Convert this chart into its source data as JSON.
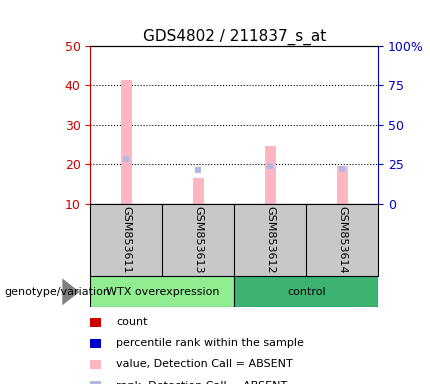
{
  "title": "GDS4802 / 211837_s_at",
  "samples": [
    "GSM853611",
    "GSM853613",
    "GSM853612",
    "GSM853614"
  ],
  "group_spans": [
    {
      "label": "WTX overexpression",
      "start": 0,
      "end": 2,
      "color": "#90EE90"
    },
    {
      "label": "control",
      "start": 2,
      "end": 4,
      "color": "#3CB371"
    }
  ],
  "bar_values_absent": [
    41.5,
    16.5,
    24.5,
    19.5
  ],
  "rank_values_absent": [
    28.5,
    21.0,
    24.0,
    22.0
  ],
  "ylim_left": [
    10,
    50
  ],
  "ylim_right": [
    0,
    100
  ],
  "yticks_left": [
    10,
    20,
    30,
    40,
    50
  ],
  "ytick_labels_left": [
    "10",
    "20",
    "30",
    "40",
    "50"
  ],
  "yticks_right": [
    0,
    25,
    50,
    75,
    100
  ],
  "ytick_labels_right": [
    "0",
    "25",
    "50",
    "75",
    "100%"
  ],
  "color_absent_bar": "#FFB6C1",
  "color_absent_rank": "#B0B8E8",
  "color_count": "#CC0000",
  "color_rank": "#0000CC",
  "left_tick_color": "#CC0000",
  "right_tick_color": "#0000CC",
  "bar_width": 0.15,
  "legend_items": [
    {
      "label": "count",
      "color": "#CC0000"
    },
    {
      "label": "percentile rank within the sample",
      "color": "#0000CC"
    },
    {
      "label": "value, Detection Call = ABSENT",
      "color": "#FFB6C1"
    },
    {
      "label": "rank, Detection Call = ABSENT",
      "color": "#B0B8E8"
    }
  ],
  "group_label": "genotype/variation",
  "sample_box_color": "#C8C8C8",
  "fig_bg": "#FFFFFF"
}
